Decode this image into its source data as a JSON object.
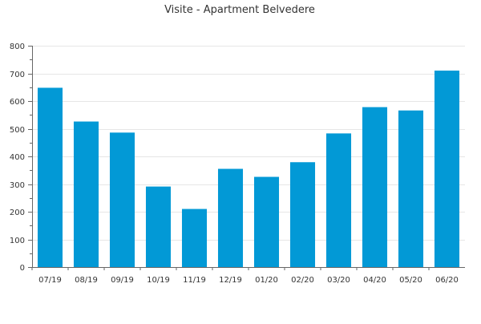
{
  "chart_data": {
    "type": "bar",
    "title": "Visite - Apartment Belvedere",
    "xlabel": "",
    "ylabel": "",
    "categories": [
      "07/19",
      "08/19",
      "09/19",
      "10/19",
      "11/19",
      "12/19",
      "01/20",
      "02/20",
      "03/20",
      "04/20",
      "05/20",
      "06/20"
    ],
    "values": [
      648,
      526,
      486,
      291,
      210,
      355,
      326,
      379,
      483,
      578,
      566,
      710
    ],
    "ylim": [
      0,
      800
    ],
    "yticks": [
      0,
      100,
      200,
      300,
      400,
      500,
      600,
      700,
      800
    ],
    "grid": true,
    "legend": "none",
    "colors": {
      "bar": "#0299d6",
      "grid": "#e6e6e6",
      "axis": "#666666",
      "text": "#333333"
    }
  }
}
